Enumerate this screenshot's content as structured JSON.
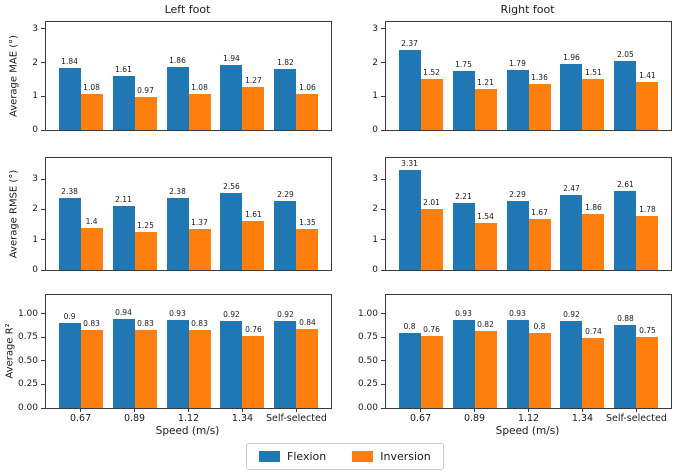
{
  "legend": {
    "items": [
      {
        "label": "Flexion",
        "color": "#1f77b4"
      },
      {
        "label": "Inversion",
        "color": "#ff7f0e"
      }
    ]
  },
  "chart_data": [
    {
      "type": "bar",
      "title": "Left foot",
      "ylabel": "Average MAE (°)",
      "categories": [
        "0.67",
        "0.89",
        "1.12",
        "1.34",
        "Self-selected"
      ],
      "yticks": [
        0,
        1,
        2,
        3
      ],
      "ytick_labels": [
        "0",
        "1",
        "2",
        "3"
      ],
      "ylim": [
        0,
        3.2
      ],
      "show_xticklabels": false,
      "series": [
        {
          "name": "Flexion",
          "color": "#1f77b4",
          "values": [
            1.84,
            1.61,
            1.86,
            1.94,
            1.82
          ]
        },
        {
          "name": "Inversion",
          "color": "#ff7f0e",
          "values": [
            1.08,
            0.97,
            1.08,
            1.27,
            1.06
          ]
        }
      ]
    },
    {
      "type": "bar",
      "title": "Right foot",
      "ylabel": "",
      "categories": [
        "0.67",
        "0.89",
        "1.12",
        "1.34",
        "Self-selected"
      ],
      "yticks": [
        0,
        1,
        2,
        3
      ],
      "ytick_labels": [
        "0",
        "1",
        "2",
        "3"
      ],
      "ylim": [
        0,
        3.2
      ],
      "show_xticklabels": false,
      "series": [
        {
          "name": "Flexion",
          "color": "#1f77b4",
          "values": [
            2.37,
            1.75,
            1.79,
            1.96,
            2.05
          ]
        },
        {
          "name": "Inversion",
          "color": "#ff7f0e",
          "values": [
            1.52,
            1.21,
            1.36,
            1.51,
            1.41
          ]
        }
      ]
    },
    {
      "type": "bar",
      "ylabel": "Average RMSE (°)",
      "categories": [
        "0.67",
        "0.89",
        "1.12",
        "1.34",
        "Self-selected"
      ],
      "yticks": [
        0,
        1,
        2,
        3
      ],
      "ytick_labels": [
        "0",
        "1",
        "2",
        "3"
      ],
      "ylim": [
        0,
        3.7
      ],
      "show_xticklabels": false,
      "series": [
        {
          "name": "Flexion",
          "color": "#1f77b4",
          "values": [
            2.38,
            2.11,
            2.38,
            2.56,
            2.29
          ]
        },
        {
          "name": "Inversion",
          "color": "#ff7f0e",
          "values": [
            1.4,
            1.25,
            1.37,
            1.61,
            1.35
          ]
        }
      ]
    },
    {
      "type": "bar",
      "ylabel": "",
      "categories": [
        "0.67",
        "0.89",
        "1.12",
        "1.34",
        "Self-selected"
      ],
      "yticks": [
        0,
        1,
        2,
        3
      ],
      "ytick_labels": [
        "0",
        "1",
        "2",
        "3"
      ],
      "ylim": [
        0,
        3.7
      ],
      "show_xticklabels": false,
      "series": [
        {
          "name": "Flexion",
          "color": "#1f77b4",
          "values": [
            3.31,
            2.21,
            2.29,
            2.47,
            2.61
          ]
        },
        {
          "name": "Inversion",
          "color": "#ff7f0e",
          "values": [
            2.01,
            1.54,
            1.67,
            1.86,
            1.78
          ]
        }
      ]
    },
    {
      "type": "bar",
      "ylabel": "Average R²",
      "xlabel": "Speed (m/s)",
      "categories": [
        "0.67",
        "0.89",
        "1.12",
        "1.34",
        "Self-selected"
      ],
      "yticks": [
        0,
        0.25,
        0.5,
        0.75,
        1
      ],
      "ytick_labels": [
        "0.00",
        "0.25",
        "0.50",
        "0.75",
        "1.00"
      ],
      "ylim": [
        0,
        1.2
      ],
      "show_xticklabels": true,
      "series": [
        {
          "name": "Flexion",
          "color": "#1f77b4",
          "values": [
            0.9,
            0.94,
            0.93,
            0.92,
            0.92
          ]
        },
        {
          "name": "Inversion",
          "color": "#ff7f0e",
          "values": [
            0.83,
            0.83,
            0.83,
            0.76,
            0.84
          ]
        }
      ]
    },
    {
      "type": "bar",
      "ylabel": "",
      "xlabel": "Speed (m/s)",
      "categories": [
        "0.67",
        "0.89",
        "1.12",
        "1.34",
        "Self-selected"
      ],
      "yticks": [
        0,
        0.25,
        0.5,
        0.75,
        1
      ],
      "ytick_labels": [
        "0.00",
        "0.25",
        "0.50",
        "0.75",
        "1.00"
      ],
      "ylim": [
        0,
        1.2
      ],
      "show_xticklabels": true,
      "series": [
        {
          "name": "Flexion",
          "color": "#1f77b4",
          "values": [
            0.8,
            0.93,
            0.93,
            0.92,
            0.88
          ]
        },
        {
          "name": "Inversion",
          "color": "#ff7f0e",
          "values": [
            0.76,
            0.82,
            0.8,
            0.74,
            0.75
          ]
        }
      ]
    }
  ]
}
